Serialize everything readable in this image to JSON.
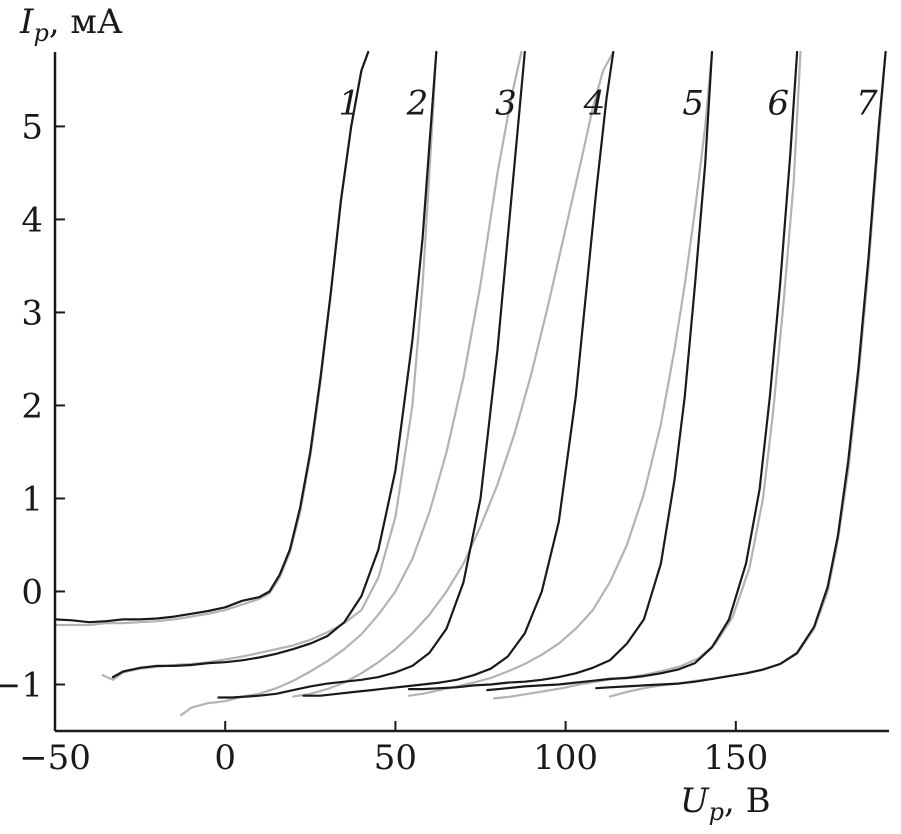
{
  "chart_data": {
    "type": "line",
    "title": "",
    "xlabel": {
      "symbol": "U",
      "subscript": "p",
      "unit": ", В"
    },
    "ylabel": {
      "symbol": "I",
      "subscript": "p",
      "unit": ", мА"
    },
    "xlim": [
      -50,
      195
    ],
    "ylim": [
      -1.5,
      5.8
    ],
    "x_ticks": [
      -50,
      0,
      50,
      100,
      150
    ],
    "y_ticks": [
      -1,
      0,
      1,
      2,
      3,
      4,
      5
    ],
    "x_tick_labels": [
      "−50",
      "0",
      "50",
      "100",
      "150"
    ],
    "y_tick_labels": [
      "−1",
      "0",
      "1",
      "2",
      "3",
      "4",
      "5"
    ],
    "grid": false,
    "legend": "none",
    "colors": {
      "measured": "#1a1a1a",
      "model": "#b3b3b3"
    },
    "curve_labels": [
      "1",
      "2",
      "3",
      "4",
      "5",
      "6",
      "7"
    ],
    "series": [
      {
        "label": "1",
        "color": "#1a1a1a",
        "x": [
          -50,
          -45,
          -40,
          -35,
          -30,
          -25,
          -20,
          -15,
          -10,
          -5,
          0,
          5,
          10,
          13,
          16,
          19,
          22,
          25,
          28,
          31,
          34,
          37,
          40,
          42
        ],
        "y": [
          -0.3,
          -0.31,
          -0.33,
          -0.32,
          -0.3,
          -0.3,
          -0.29,
          -0.27,
          -0.24,
          -0.21,
          -0.17,
          -0.1,
          -0.06,
          0.0,
          0.18,
          0.45,
          0.9,
          1.5,
          2.3,
          3.2,
          4.2,
          5.0,
          5.6,
          5.8
        ]
      },
      {
        "label": "1",
        "color": "#b3b3b3",
        "x": [
          -50,
          -45,
          -40,
          -35,
          -30,
          -25,
          -20,
          -15,
          -10,
          -5,
          0,
          5,
          10,
          13,
          16,
          19,
          22,
          25,
          28,
          31,
          34,
          37,
          40,
          42
        ],
        "y": [
          -0.36,
          -0.36,
          -0.36,
          -0.34,
          -0.34,
          -0.33,
          -0.32,
          -0.3,
          -0.27,
          -0.24,
          -0.2,
          -0.14,
          -0.08,
          -0.02,
          0.15,
          0.42,
          0.85,
          1.45,
          2.25,
          3.2,
          4.2,
          5.0,
          5.6,
          5.8
        ]
      },
      {
        "label": "2",
        "color": "#1a1a1a",
        "x": [
          -33,
          -30,
          -25,
          -20,
          -15,
          -10,
          -5,
          0,
          5,
          10,
          15,
          20,
          25,
          30,
          35,
          40,
          45,
          50,
          55,
          58,
          60,
          62
        ],
        "y": [
          -0.92,
          -0.86,
          -0.82,
          -0.8,
          -0.8,
          -0.79,
          -0.77,
          -0.76,
          -0.74,
          -0.71,
          -0.67,
          -0.62,
          -0.56,
          -0.48,
          -0.33,
          -0.05,
          0.45,
          1.3,
          2.7,
          3.8,
          4.8,
          5.8
        ]
      },
      {
        "label": "2",
        "color": "#b3b3b3",
        "x": [
          -36,
          -33,
          -30,
          -25,
          -20,
          -15,
          -10,
          -5,
          0,
          5,
          10,
          15,
          20,
          25,
          30,
          35,
          40,
          45,
          50,
          55,
          58,
          60,
          62
        ],
        "y": [
          -0.9,
          -0.95,
          -0.87,
          -0.83,
          -0.81,
          -0.79,
          -0.78,
          -0.76,
          -0.73,
          -0.7,
          -0.66,
          -0.62,
          -0.58,
          -0.52,
          -0.44,
          -0.34,
          -0.2,
          0.15,
          0.8,
          2.0,
          3.3,
          4.5,
          5.8
        ]
      },
      {
        "label": "3",
        "color": "#1a1a1a",
        "x": [
          -2,
          2,
          6,
          10,
          15,
          20,
          25,
          30,
          35,
          40,
          45,
          50,
          55,
          60,
          65,
          70,
          75,
          80,
          83,
          86,
          88
        ],
        "y": [
          -1.14,
          -1.14,
          -1.13,
          -1.12,
          -1.1,
          -1.06,
          -1.02,
          -0.99,
          -0.97,
          -0.95,
          -0.92,
          -0.87,
          -0.8,
          -0.66,
          -0.4,
          0.1,
          1.0,
          2.6,
          3.8,
          5.0,
          5.8
        ]
      },
      {
        "label": "3",
        "color": "#b3b3b3",
        "x": [
          -13,
          -10,
          -5,
          0,
          5,
          10,
          15,
          20,
          25,
          30,
          35,
          40,
          45,
          50,
          55,
          60,
          65,
          70,
          75,
          80,
          84,
          87
        ],
        "y": [
          -1.33,
          -1.25,
          -1.2,
          -1.18,
          -1.13,
          -1.1,
          -1.04,
          -0.96,
          -0.86,
          -0.75,
          -0.62,
          -0.46,
          -0.25,
          0.0,
          0.35,
          0.85,
          1.5,
          2.3,
          3.3,
          4.5,
          5.3,
          5.8
        ]
      },
      {
        "label": "4",
        "color": "#1a1a1a",
        "x": [
          23,
          28,
          33,
          38,
          43,
          48,
          53,
          58,
          63,
          68,
          73,
          78,
          83,
          88,
          93,
          98,
          103,
          106,
          109,
          112,
          114
        ],
        "y": [
          -1.12,
          -1.12,
          -1.1,
          -1.08,
          -1.06,
          -1.04,
          -1.02,
          -1.0,
          -0.98,
          -0.95,
          -0.9,
          -0.83,
          -0.7,
          -0.45,
          0.0,
          0.75,
          2.1,
          3.2,
          4.3,
          5.3,
          5.8
        ]
      },
      {
        "label": "4",
        "color": "#b3b3b3",
        "x": [
          20,
          25,
          30,
          35,
          40,
          45,
          50,
          55,
          60,
          65,
          70,
          75,
          80,
          85,
          90,
          95,
          100,
          105,
          108,
          111,
          114
        ],
        "y": [
          -1.13,
          -1.1,
          -1.05,
          -0.98,
          -0.88,
          -0.76,
          -0.62,
          -0.45,
          -0.25,
          0.0,
          0.3,
          0.7,
          1.15,
          1.7,
          2.35,
          3.1,
          3.9,
          4.7,
          5.2,
          5.6,
          5.8
        ]
      },
      {
        "label": "5",
        "color": "#1a1a1a",
        "x": [
          54,
          58,
          63,
          68,
          73,
          78,
          83,
          88,
          93,
          98,
          103,
          108,
          113,
          118,
          123,
          128,
          132,
          135,
          138,
          141,
          143
        ],
        "y": [
          -1.05,
          -1.05,
          -1.04,
          -1.03,
          -1.01,
          -1.0,
          -0.98,
          -0.97,
          -0.95,
          -0.92,
          -0.88,
          -0.82,
          -0.74,
          -0.56,
          -0.3,
          0.3,
          1.2,
          2.1,
          3.3,
          4.6,
          5.8
        ]
      },
      {
        "label": "5",
        "color": "#b3b3b3",
        "x": [
          54,
          58,
          63,
          68,
          73,
          78,
          83,
          88,
          93,
          98,
          103,
          108,
          113,
          118,
          123,
          128,
          132,
          135,
          138,
          141,
          143
        ],
        "y": [
          -1.12,
          -1.1,
          -1.06,
          -1.02,
          -0.98,
          -0.93,
          -0.86,
          -0.78,
          -0.68,
          -0.56,
          -0.4,
          -0.2,
          0.1,
          0.5,
          1.05,
          1.8,
          2.6,
          3.3,
          4.1,
          5.0,
          5.8
        ]
      },
      {
        "label": "6",
        "color": "#1a1a1a",
        "x": [
          77,
          83,
          88,
          93,
          98,
          103,
          108,
          113,
          118,
          123,
          128,
          133,
          138,
          143,
          148,
          153,
          157,
          160,
          163,
          166,
          168
        ],
        "y": [
          -1.06,
          -1.04,
          -1.02,
          -1.01,
          -1.0,
          -0.98,
          -0.96,
          -0.94,
          -0.93,
          -0.91,
          -0.88,
          -0.84,
          -0.77,
          -0.6,
          -0.3,
          0.3,
          1.1,
          2.1,
          3.3,
          4.7,
          5.8
        ]
      },
      {
        "label": "6",
        "color": "#b3b3b3",
        "x": [
          79,
          84,
          89,
          94,
          99,
          104,
          109,
          114,
          119,
          124,
          129,
          134,
          139,
          144,
          149,
          154,
          158,
          161,
          164,
          167,
          169
        ],
        "y": [
          -1.15,
          -1.13,
          -1.1,
          -1.07,
          -1.04,
          -1.0,
          -0.97,
          -0.94,
          -0.92,
          -0.89,
          -0.85,
          -0.8,
          -0.72,
          -0.56,
          -0.28,
          0.25,
          1.0,
          1.95,
          3.1,
          4.4,
          5.8
        ]
      },
      {
        "label": "7",
        "color": "#1a1a1a",
        "x": [
          109,
          113,
          118,
          123,
          128,
          133,
          138,
          143,
          148,
          153,
          158,
          163,
          168,
          173,
          177,
          180,
          183,
          186,
          189,
          192,
          194
        ],
        "y": [
          -1.04,
          -1.03,
          -1.02,
          -1.01,
          -1.0,
          -0.99,
          -0.97,
          -0.94,
          -0.91,
          -0.88,
          -0.84,
          -0.78,
          -0.66,
          -0.38,
          0.05,
          0.6,
          1.4,
          2.4,
          3.6,
          5.0,
          5.8
        ]
      },
      {
        "label": "7",
        "color": "#b3b3b3",
        "x": [
          113,
          118,
          123,
          128,
          133,
          138,
          143,
          148,
          153,
          158,
          163,
          168,
          173,
          177,
          180,
          183,
          186,
          189,
          192,
          194
        ],
        "y": [
          -1.13,
          -1.08,
          -1.04,
          -1.01,
          -0.99,
          -0.96,
          -0.94,
          -0.91,
          -0.88,
          -0.84,
          -0.78,
          -0.67,
          -0.4,
          0.0,
          0.55,
          1.3,
          2.3,
          3.5,
          4.9,
          5.8
        ]
      }
    ]
  }
}
